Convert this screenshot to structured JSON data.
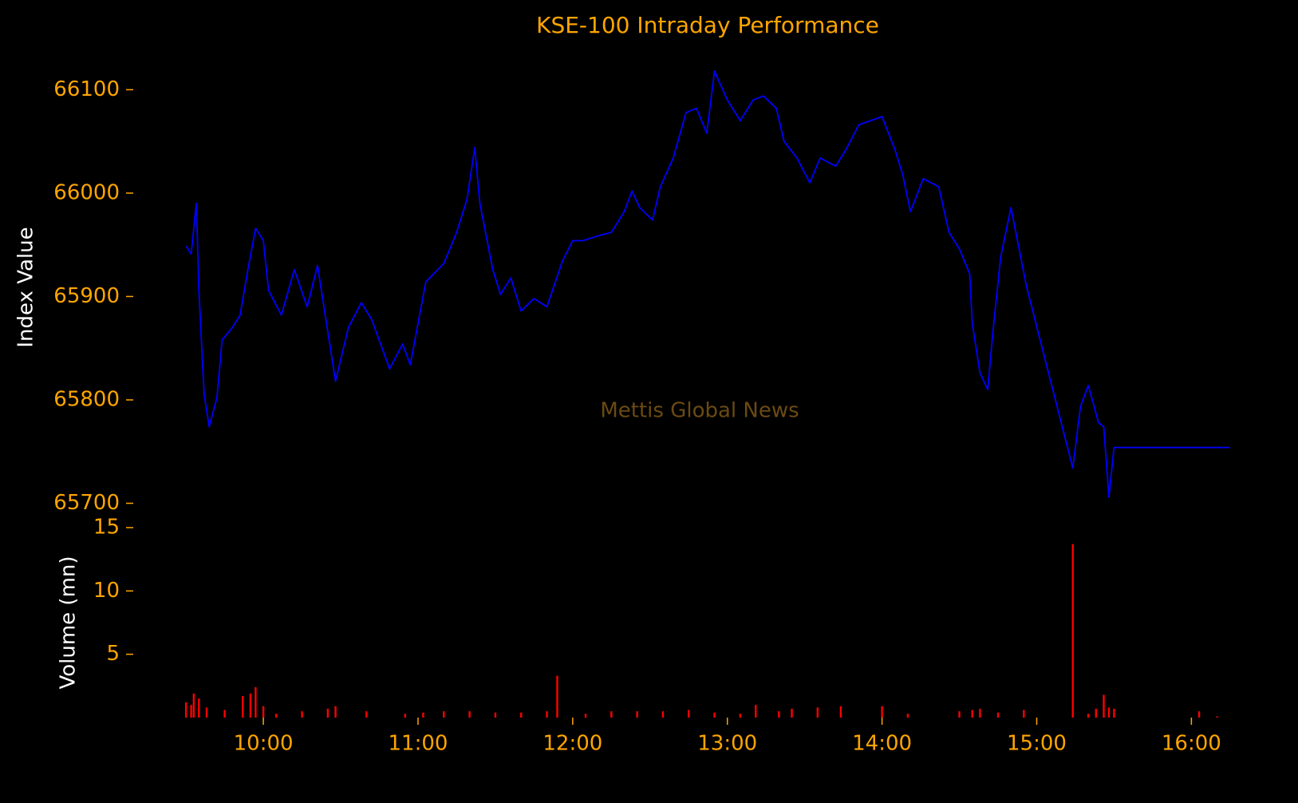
{
  "chart_data": [
    {
      "type": "line",
      "title": "KSE-100 Intraday Performance",
      "ylabel": "Index Value",
      "annotation": "Mettis Global News",
      "series": [
        {
          "name": "KSE-100",
          "color": "#0000ff",
          "x": [
            "09:30",
            "09:32",
            "09:34",
            "09:35",
            "09:37",
            "09:39",
            "09:42",
            "09:44",
            "09:48",
            "09:51",
            "09:54",
            "09:57",
            "10:00",
            "10:02",
            "10:07",
            "10:12",
            "10:17",
            "10:21",
            "10:25",
            "10:28",
            "10:33",
            "10:38",
            "10:42",
            "10:49",
            "10:54",
            "10:57",
            "11:03",
            "11:10",
            "11:15",
            "11:19",
            "11:22",
            "11:24",
            "11:29",
            "11:32",
            "11:36",
            "11:40",
            "11:45",
            "11:50",
            "11:56",
            "12:00",
            "12:04",
            "12:09",
            "12:15",
            "12:20",
            "12:23",
            "12:26",
            "12:31",
            "12:34",
            "12:39",
            "12:44",
            "12:48",
            "12:52",
            "12:55",
            "13:00",
            "13:05",
            "13:10",
            "13:14",
            "13:19",
            "13:22",
            "13:27",
            "13:32",
            "13:36",
            "13:42",
            "13:46",
            "13:51",
            "14:00",
            "14:05",
            "14:08",
            "14:11",
            "14:16",
            "14:22",
            "14:26",
            "14:30",
            "14:34",
            "14:35",
            "14:38",
            "14:41",
            "14:43",
            "14:46",
            "14:50",
            "14:56",
            "15:14",
            "15:17",
            "15:20",
            "15:24",
            "15:26",
            "15:28",
            "15:30",
            "16:15"
          ],
          "values": [
            65949,
            65941,
            65990,
            65906,
            65806,
            65774,
            65802,
            65858,
            65870,
            65882,
            65926,
            65966,
            65954,
            65906,
            65882,
            65926,
            65890,
            65930,
            65866,
            65818,
            65870,
            65894,
            65878,
            65830,
            65854,
            65834,
            65914,
            65932,
            65962,
            65994,
            66044,
            65990,
            65926,
            65902,
            65918,
            65886,
            65898,
            65890,
            65934,
            65954,
            65954,
            65958,
            65962,
            65982,
            66002,
            65986,
            65974,
            66006,
            66034,
            66078,
            66082,
            66058,
            66118,
            66090,
            66070,
            66090,
            66094,
            66082,
            66050,
            66034,
            66010,
            66034,
            66026,
            66042,
            66066,
            66074,
            66042,
            66018,
            65982,
            66014,
            66006,
            65962,
            65946,
            65922,
            65874,
            65826,
            65810,
            65866,
            65938,
            65986,
            65910,
            65734,
            65794,
            65814,
            65778,
            65774,
            65706,
            65754,
            65754
          ]
        }
      ],
      "ylim": [
        65695,
        66125
      ],
      "yticks": [
        65700,
        65800,
        65900,
        66000,
        66100
      ],
      "xlim": [
        "09:25",
        "16:20"
      ]
    },
    {
      "type": "bar",
      "ylabel": "Volume (mn)",
      "color": "#ff0000",
      "x": [
        "09:30",
        "09:32",
        "09:33",
        "09:35",
        "09:38",
        "09:45",
        "09:52",
        "09:55",
        "09:57",
        "10:00",
        "10:05",
        "10:15",
        "10:25",
        "10:28",
        "10:40",
        "10:55",
        "11:02",
        "11:10",
        "11:20",
        "11:30",
        "11:40",
        "11:50",
        "11:54",
        "12:05",
        "12:15",
        "12:25",
        "12:35",
        "12:45",
        "12:55",
        "13:05",
        "13:11",
        "13:20",
        "13:25",
        "13:35",
        "13:44",
        "14:00",
        "14:10",
        "14:30",
        "14:35",
        "14:38",
        "14:45",
        "14:55",
        "15:14",
        "15:20",
        "15:23",
        "15:26",
        "15:28",
        "15:30",
        "16:03",
        "16:10"
      ],
      "values": [
        1.2,
        1.0,
        1.9,
        1.5,
        0.8,
        0.6,
        1.7,
        1.9,
        2.4,
        0.9,
        0.3,
        0.5,
        0.7,
        0.9,
        0.5,
        0.3,
        0.4,
        0.5,
        0.5,
        0.4,
        0.4,
        0.5,
        3.3,
        0.3,
        0.5,
        0.5,
        0.5,
        0.6,
        0.4,
        0.3,
        1.0,
        0.5,
        0.7,
        0.8,
        0.9,
        0.9,
        0.3,
        0.5,
        0.6,
        0.7,
        0.4,
        0.6,
        13.7,
        0.3,
        0.7,
        1.8,
        0.8,
        0.7,
        0.5,
        0.1
      ],
      "ylim": [
        0,
        15
      ],
      "yticks": [
        5,
        10,
        15
      ],
      "xlim": [
        "09:25",
        "16:20"
      ],
      "xticks": [
        "10:00",
        "11:00",
        "12:00",
        "13:00",
        "14:00",
        "15:00",
        "16:00"
      ]
    }
  ]
}
